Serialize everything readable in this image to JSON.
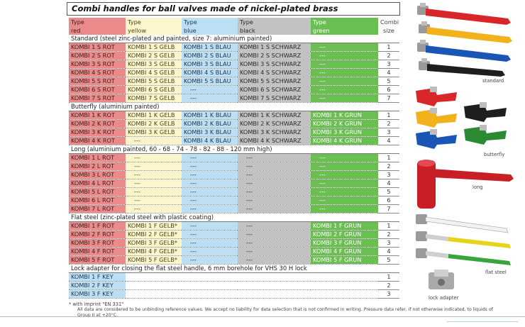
{
  "title": "Combi handles for ball valves made of nickel-plated brass",
  "header": {
    "red": [
      "Type",
      "red"
    ],
    "yellow": [
      "Type",
      "yellow"
    ],
    "blue": [
      "Type",
      "blue"
    ],
    "black": [
      "Type",
      "black"
    ],
    "green": [
      "Type",
      "green"
    ],
    "size": [
      "Combi",
      "size"
    ]
  },
  "sections": [
    {
      "title": "Standard (steel zinc-plated and painted, size 7: aluminium painted)",
      "rows": [
        [
          "KOMBI 1 S ROT",
          "KOMBI 1 S GELB",
          "KOMBI 1 S BLAU",
          "KOMBI 1 S SCHWARZ",
          "---",
          "1"
        ],
        [
          "KOMBI 2 S ROT",
          "KOMBI 2 S GELB",
          "KOMBI 2 S BLAU",
          "KOMBI 2 S SCHWARZ",
          "---",
          "2"
        ],
        [
          "KOMBI 3 S ROT",
          "KOMBI 3 S GELB",
          "KOMBI 3 S BLAU",
          "KOMBI 3 S SCHWARZ",
          "---",
          "3"
        ],
        [
          "KOMBI 4 S ROT",
          "KOMBI 4 S GELB",
          "KOMBI 4 S BLAU",
          "KOMBI 4 S SCHWARZ",
          "---",
          "4"
        ],
        [
          "KOMBI 5 S ROT",
          "KOMBI 5 S GELB",
          "KOMBI 5 S BLAU",
          "KOMBI 5 S SCHWARZ",
          "---",
          "5"
        ],
        [
          "KOMBI 6 S ROT",
          "KOMBI 6 S GELB",
          "---",
          "KOMBI 6 S SCHWARZ",
          "---",
          "6"
        ],
        [
          "KOMBI 7 S ROT",
          "KOMBI 7 S GELB",
          "---",
          "KOMBI 7 S SCHWARZ",
          "---",
          "7"
        ]
      ]
    },
    {
      "title": "Butterfly (aluminium painted)",
      "rows": [
        [
          "KOMBI 1 K ROT",
          "KOMBI 1 K GELB",
          "KOMBI 1 K BLAU",
          "KOMBI 1 K SCHWARZ",
          "KOMBI 1 K GRUN",
          "1"
        ],
        [
          "KOMBI 2 K ROT",
          "KOMBI 2 K GELB",
          "KOMBI 2 K BLAU",
          "KOMBI 2 K SCHWARZ",
          "KOMBI 2 K GRUN",
          "2"
        ],
        [
          "KOMBI 3 K ROT",
          "KOMBI 3 K GELB",
          "KOMBI 3 K BLAU",
          "KOMBI 3 K SCHWARZ",
          "KOMBI 3 K GRUN",
          "3"
        ],
        [
          "KOMBI 4 K ROT",
          "---",
          "KOMBI 4 K BLAU",
          "KOMBI 4 K SCHWARZ",
          "KOMBI 4 K GRUN",
          "4"
        ]
      ]
    },
    {
      "title": "Long (aluminium painted, 60 - 68 - 74 - 78 - 82 - 88 - 120 mm high)",
      "rows": [
        [
          "KOMBI 1 L ROT",
          "---",
          "---",
          "---",
          "---",
          "1"
        ],
        [
          "KOMBI 2 L ROT",
          "---",
          "---",
          "---",
          "---",
          "2"
        ],
        [
          "KOMBI 3 L ROT",
          "---",
          "---",
          "---",
          "---",
          "3"
        ],
        [
          "KOMBI 4 L ROT",
          "---",
          "---",
          "---",
          "---",
          "4"
        ],
        [
          "KOMBI 5 L ROT",
          "---",
          "---",
          "---",
          "---",
          "5"
        ],
        [
          "KOMBI 6 L ROT",
          "---",
          "---",
          "---",
          "---",
          "6"
        ],
        [
          "KOMBI 7 L ROT",
          "---",
          "---",
          "---",
          "---",
          "7"
        ]
      ]
    },
    {
      "title": "Flat steel (zinc-plated steel with plastic coating)",
      "rows": [
        [
          "KOMBI 1 F ROT",
          "KOMBI 1 F GELB*",
          "---",
          "---",
          "KOMBI 1 F GRUN",
          "1"
        ],
        [
          "KOMBI 2 F ROT",
          "KOMBI 2 F GELB*",
          "---",
          "---",
          "KOMBI 2 F GRUN",
          "2"
        ],
        [
          "KOMBI 3 F ROT",
          "KOMBI 3 F GELB*",
          "---",
          "---",
          "KOMBI 3 F GRUN",
          "3"
        ],
        [
          "KOMBI 4 F ROT",
          "KOMBI 4 F GELB*",
          "---",
          "---",
          "KOMBI 4 F GRUN",
          "4"
        ],
        [
          "KOMBI 5 F ROT",
          "KOMBI 5 F GELB*",
          "---",
          "---",
          "KOMBI 5 F GRUN",
          "5"
        ]
      ]
    }
  ],
  "lock_section": {
    "title": "Lock adapter for closing the flat steel handle, 6 mm borehole for VHS 30 H lock",
    "rows": [
      [
        "KOMBI 1 F KEY",
        "1"
      ],
      [
        "KOMBI 2 F KEY",
        "2"
      ],
      [
        "KOMBI 3 F KEY",
        "3"
      ]
    ]
  },
  "footnotes": {
    "imprint": "* with imprint \"EN 331\"",
    "disclaimer": "All data are considered to be unbinding reference values. We accept no liability for data selection that is not confirmed in writing. Pressure data refer, if not otherwise indicated, to liquids of Group II at +20°C."
  },
  "captions": {
    "standard": "standard",
    "butterfly": "butterfly",
    "long": "long",
    "flat_steel": "flat steel",
    "lock_adapter": "lock adapter"
  },
  "colors": {
    "red": "#ea8a8a",
    "yellow": "#fdf6cc",
    "blue": "#bcdff4",
    "black": "#c2c2c2",
    "green": "#6bbe52",
    "handle_red": "#d8262b",
    "handle_yellow": "#f2b21b",
    "handle_blue": "#1a55b5",
    "handle_black": "#1e1e1e",
    "handle_green": "#2d8a34"
  }
}
